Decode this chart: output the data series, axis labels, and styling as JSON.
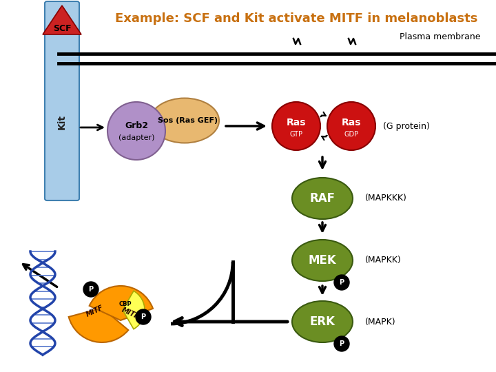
{
  "title": "Example: SCF and Kit activate MITF in melanoblasts",
  "title_color": "#c87010",
  "title_fontsize": 13,
  "bg_color": "#ffffff",
  "membrane_label": "Plasma membrane",
  "kit_color_top": "#a8cce8",
  "kit_color_bot": "#5090c8",
  "kit_label": "Kit",
  "scf_label": "SCF",
  "scf_color": "#cc2222",
  "grb2_color": "#b090c8",
  "sos_color": "#e8b870",
  "sos_label": "Sos (Ras GEF)",
  "ras_color": "#cc1111",
  "g_protein_label": "(G protein)",
  "raf_color": "#6b8e23",
  "raf_label": "RAF",
  "mapkkk_label": "(MAPKKK)",
  "mek_color": "#6b8e23",
  "mek_label": "MEK",
  "mapkk_label": "(MAPKK)",
  "erk_color": "#6b8e23",
  "erk_label": "ERK",
  "mapk_label": "(MAPK)",
  "p_label": "P",
  "mitf_color": "#ff9900",
  "cbp_color": "#ffff55",
  "mitf_label": "MITF",
  "cbp_label": "CBP",
  "dna_color": "#2244aa"
}
